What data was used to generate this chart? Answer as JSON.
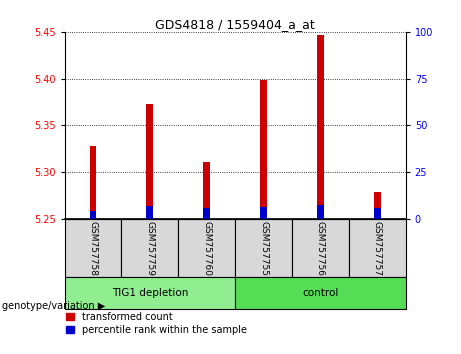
{
  "title": "GDS4818 / 1559404_a_at",
  "samples": [
    "GSM757758",
    "GSM757759",
    "GSM757760",
    "GSM757755",
    "GSM757756",
    "GSM757757"
  ],
  "red_values": [
    5.328,
    5.373,
    5.311,
    5.398,
    5.447,
    5.278
  ],
  "blue_values": [
    5.258,
    5.263,
    5.261,
    5.262,
    5.265,
    5.261
  ],
  "base": 5.25,
  "ylim_left": [
    5.25,
    5.45
  ],
  "ylim_right": [
    0,
    100
  ],
  "yticks_left": [
    5.25,
    5.3,
    5.35,
    5.4,
    5.45
  ],
  "yticks_right": [
    0,
    25,
    50,
    75,
    100
  ],
  "legend_red": "transformed count",
  "legend_blue": "percentile rank within the sample",
  "red_color": "#CC0000",
  "blue_color": "#0000CC",
  "bar_width": 0.12,
  "bg_color": "#d8d8d8",
  "group1_color": "#90EE90",
  "group2_color": "#55DD55",
  "group1_label": "TIG1 depletion",
  "group2_label": "control",
  "genotype_label": "genotype/variation"
}
